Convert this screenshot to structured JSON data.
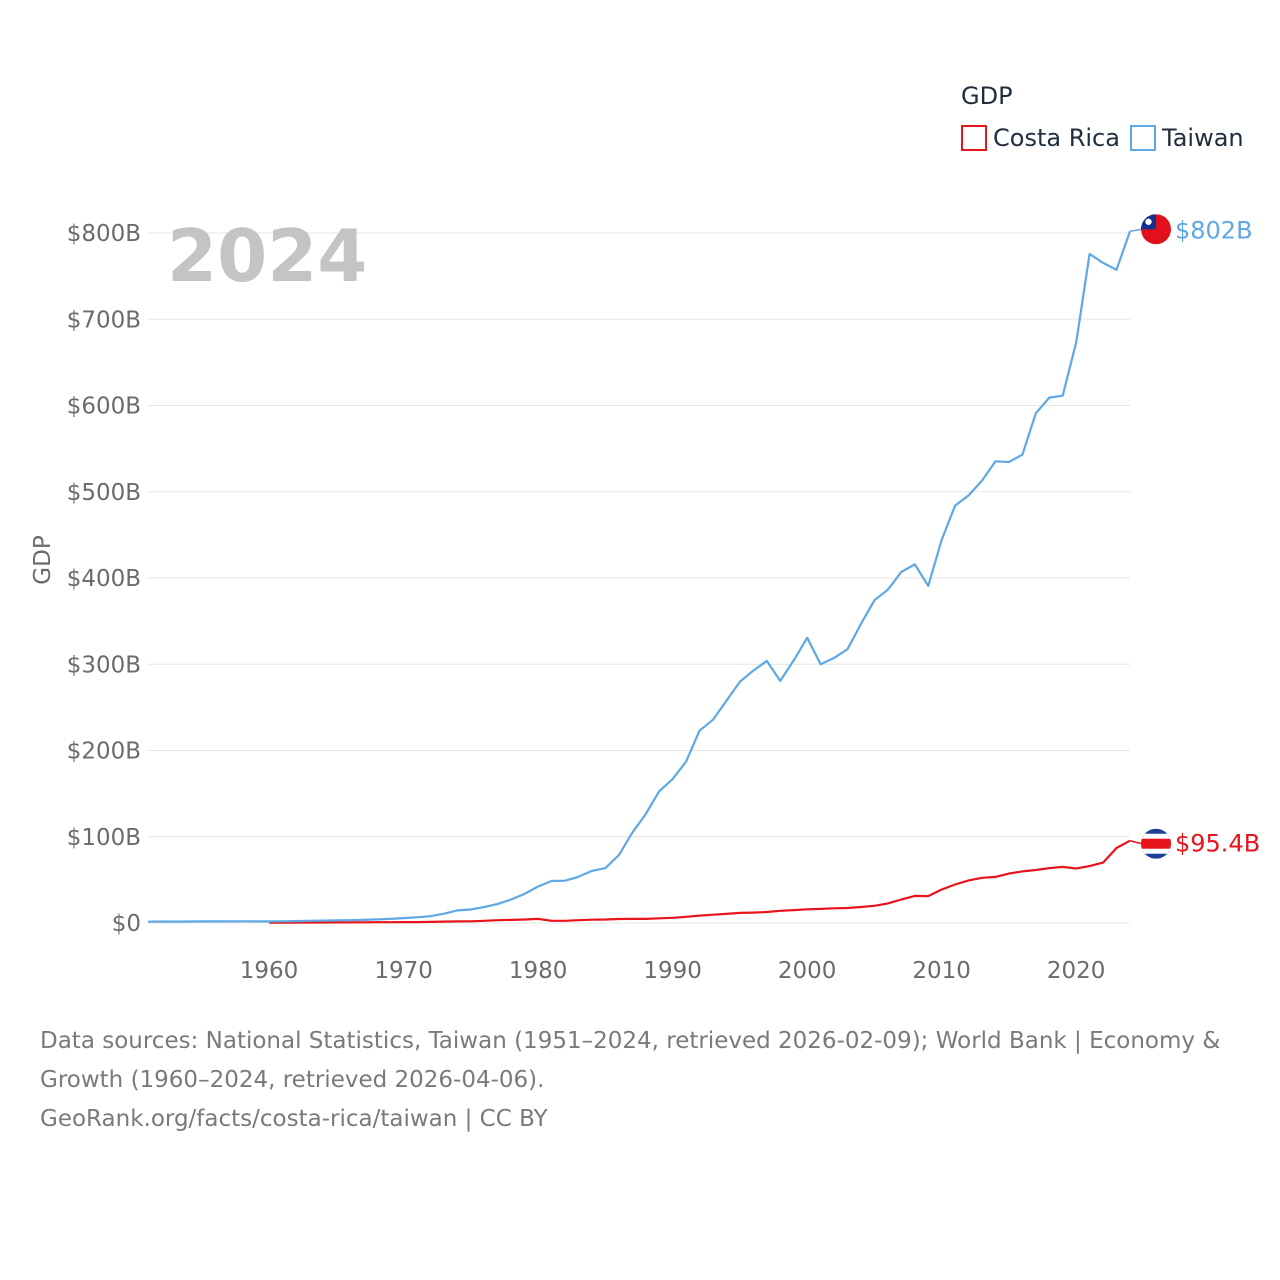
{
  "chart_data": {
    "type": "line",
    "title": "GDP",
    "ylabel": "GDP",
    "xlabel": "",
    "year_label": "2024",
    "xlim": [
      1951,
      2024
    ],
    "ylim": [
      0,
      800
    ],
    "x_ticks": [
      1960,
      1970,
      1980,
      1990,
      2000,
      2010,
      2020
    ],
    "y_ticks": [
      {
        "value": 0,
        "label": "$0"
      },
      {
        "value": 100,
        "label": "$100B"
      },
      {
        "value": 200,
        "label": "$200B"
      },
      {
        "value": 300,
        "label": "$300B"
      },
      {
        "value": 400,
        "label": "$400B"
      },
      {
        "value": 500,
        "label": "$500B"
      },
      {
        "value": 600,
        "label": "$600B"
      },
      {
        "value": 700,
        "label": "$700B"
      },
      {
        "value": 800,
        "label": "$800B"
      }
    ],
    "legend": {
      "title": "GDP",
      "position": "top-right"
    },
    "series": [
      {
        "name": "Costa Rica",
        "color": "#e8141c",
        "end_label": "$95.4B",
        "flag": "costa-rica-flag",
        "x": [
          1960,
          1961,
          1962,
          1963,
          1964,
          1965,
          1966,
          1967,
          1968,
          1969,
          1970,
          1971,
          1972,
          1973,
          1974,
          1975,
          1976,
          1977,
          1978,
          1979,
          1980,
          1981,
          1982,
          1983,
          1984,
          1985,
          1986,
          1987,
          1988,
          1989,
          1990,
          1991,
          1992,
          1993,
          1994,
          1995,
          1996,
          1997,
          1998,
          1999,
          2000,
          2001,
          2002,
          2003,
          2004,
          2005,
          2006,
          2007,
          2008,
          2009,
          2010,
          2011,
          2012,
          2013,
          2014,
          2015,
          2016,
          2017,
          2018,
          2019,
          2020,
          2021,
          2022,
          2023,
          2024
        ],
        "values": [
          0.5,
          0.5,
          0.5,
          0.6,
          0.6,
          0.7,
          0.7,
          0.8,
          0.9,
          0.9,
          1.0,
          1.1,
          1.3,
          1.6,
          1.9,
          2.0,
          2.5,
          3.2,
          3.6,
          4.0,
          4.8,
          2.6,
          2.6,
          3.2,
          3.8,
          4.0,
          4.6,
          4.8,
          4.8,
          5.5,
          6.0,
          7.2,
          8.6,
          9.6,
          10.5,
          11.7,
          12.0,
          12.8,
          14.1,
          14.9,
          15.9,
          16.4,
          17.0,
          17.4,
          18.6,
          20.0,
          22.7,
          27.3,
          31.4,
          31.2,
          38.8,
          44.6,
          49.4,
          52.4,
          53.5,
          57.3,
          59.8,
          61.4,
          63.6,
          65.0,
          63.2,
          66.0,
          70.0,
          87.0,
          95.4
        ]
      },
      {
        "name": "Taiwan",
        "color": "#5ea8e6",
        "end_label": "$802B",
        "flag": "taiwan-flag",
        "x": [
          1951,
          1952,
          1953,
          1954,
          1955,
          1956,
          1957,
          1958,
          1959,
          1960,
          1961,
          1962,
          1963,
          1964,
          1965,
          1966,
          1967,
          1968,
          1969,
          1970,
          1971,
          1972,
          1973,
          1974,
          1975,
          1976,
          1977,
          1978,
          1979,
          1980,
          1981,
          1982,
          1983,
          1984,
          1985,
          1986,
          1987,
          1988,
          1989,
          1990,
          1991,
          1992,
          1993,
          1994,
          1995,
          1996,
          1997,
          1998,
          1999,
          2000,
          2001,
          2002,
          2003,
          2004,
          2005,
          2006,
          2007,
          2008,
          2009,
          2010,
          2011,
          2012,
          2013,
          2014,
          2015,
          2016,
          2017,
          2018,
          2019,
          2020,
          2021,
          2022,
          2023,
          2024
        ],
        "values": [
          1.5,
          1.7,
          1.6,
          1.7,
          1.9,
          1.8,
          1.9,
          2.0,
          1.8,
          1.9,
          2.0,
          2.2,
          2.5,
          2.8,
          3.0,
          3.3,
          3.6,
          4.2,
          4.8,
          5.7,
          6.6,
          7.9,
          10.8,
          14.6,
          15.7,
          18.6,
          22.1,
          27.3,
          33.9,
          42.3,
          48.7,
          49.0,
          53.6,
          60.4,
          63.6,
          78.6,
          104.7,
          126.3,
          152.7,
          166.8,
          187.1,
          222.9,
          235.7,
          257.6,
          279.8,
          292.6,
          303.9,
          280.7,
          304.5,
          330.7,
          300.0,
          307.4,
          317.4,
          346.9,
          374.1,
          386.5,
          406.9,
          415.9,
          390.8,
          444.3,
          483.9,
          495.8,
          512.9,
          535.3,
          534.5,
          543.0,
          590.8,
          609.2,
          611.4,
          673.3,
          775.6,
          765.3,
          757.3,
          802.0
        ]
      }
    ]
  },
  "footer": {
    "line1": "Data sources: National Statistics, Taiwan (1951–2024, retrieved 2026-02-09); World Bank | Economy & Growth (1960–2024, retrieved 2026-04-06).",
    "line2": "GeoRank.org/facts/costa-rica/taiwan | CC BY"
  }
}
